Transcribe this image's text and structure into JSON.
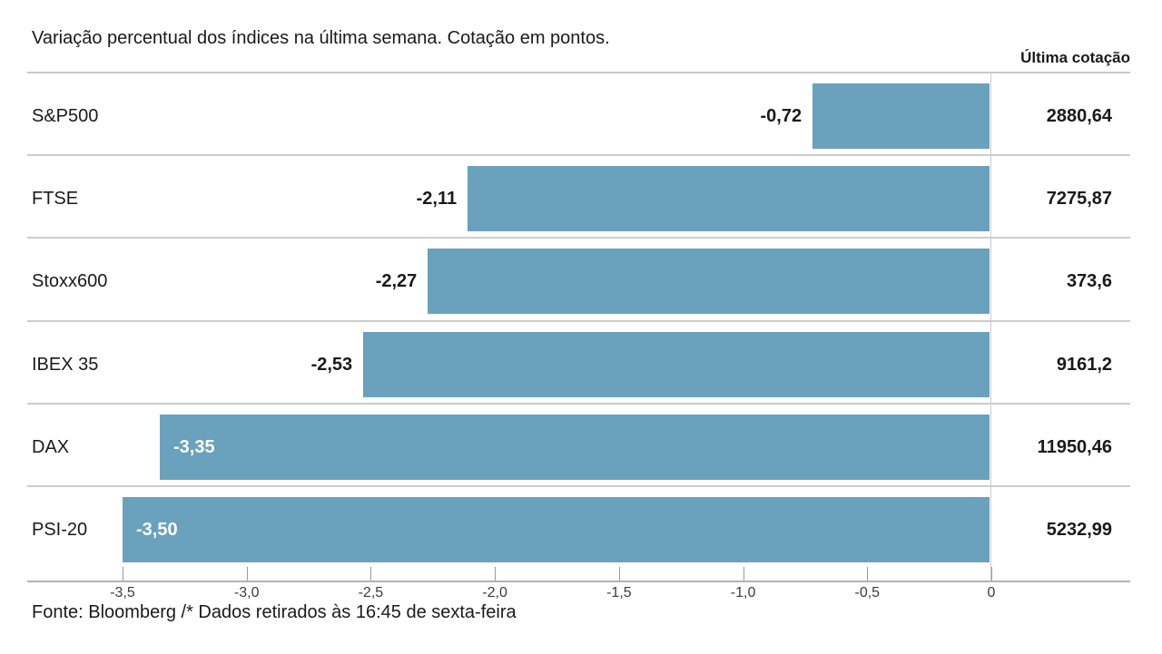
{
  "header": {
    "title": "Variação percentual dos índices na última semana. Cotação em pontos.",
    "last_quote_column": "Última cotação"
  },
  "footer": {
    "source": "Fonte: Bloomberg /* Dados retirados às 16:45 de sexta-feira"
  },
  "chart_data": {
    "type": "bar",
    "orientation": "horizontal",
    "title": "Variação percentual dos índices na última semana. Cotação em pontos.",
    "value_column_header": "Última cotação",
    "categories": [
      "S&P500",
      "FTSE",
      "Stoxx600",
      "IBEX 35",
      "DAX",
      "PSI-20"
    ],
    "values": [
      -0.72,
      -2.11,
      -2.27,
      -2.53,
      -3.35,
      -3.5
    ],
    "value_labels": [
      "-0,72",
      "-2,11",
      "-2,27",
      "-2,53",
      "-3,35",
      "-3,50"
    ],
    "label_inside": [
      false,
      false,
      false,
      false,
      true,
      true
    ],
    "last_quotes": [
      "2880,64",
      "7275,87",
      "373,6",
      "9161,2",
      "11950,46",
      "5232,99"
    ],
    "xlim": [
      -3.5,
      0
    ],
    "x_ticks": [
      -3.5,
      -3.0,
      -2.5,
      -2.0,
      -1.5,
      -1.0,
      -0.5,
      0
    ],
    "x_tick_labels": [
      "-3,5",
      "-3,0",
      "-2,5",
      "-2,0",
      "-1,5",
      "-1,0",
      "-0,5",
      "0"
    ],
    "grid": false,
    "legend": false,
    "bar_color": "#6aa1bc",
    "source_note": "Fonte: Bloomberg /* Dados retirados às 16:45 de sexta-feira"
  }
}
